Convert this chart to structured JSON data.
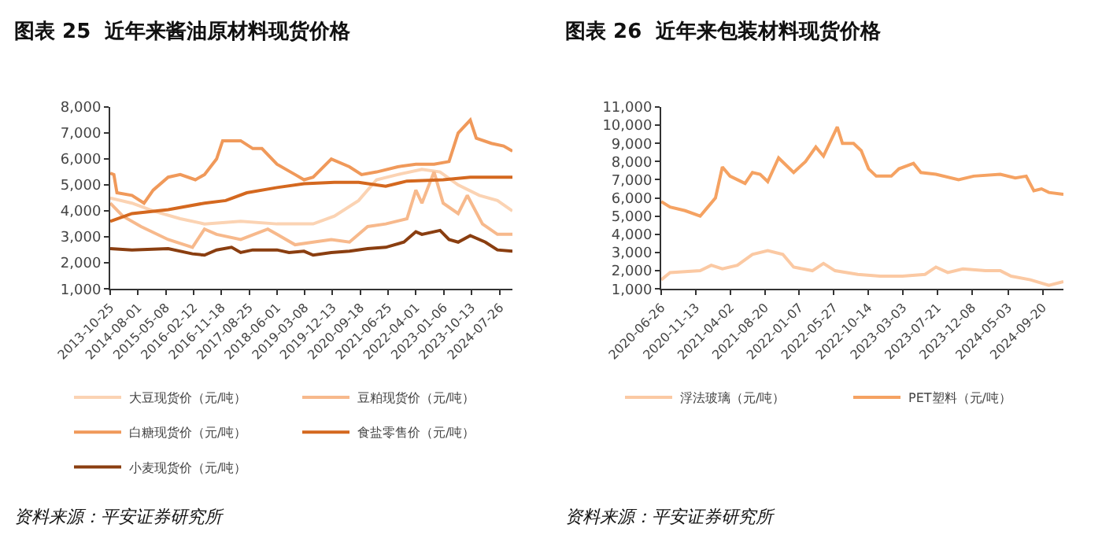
{
  "chart_data": [
    {
      "type": "line",
      "title": "图表 25  近年来酱油原材料现货价格",
      "annotations": [
        "资料来源：平安证券研究所"
      ],
      "xlim": [
        "2013-10-25",
        "2024-11-29"
      ],
      "xticks": [
        "2013-10-25",
        "2014-08-01",
        "2015-05-08",
        "2016-02-12",
        "2016-11-18",
        "2017-08-25",
        "2018-06-01",
        "2019-03-08",
        "2019-12-13",
        "2020-09-18",
        "2021-06-25",
        "2022-04-01",
        "2023-01-06",
        "2023-10-13",
        "2024-07-26"
      ],
      "ylim": [
        1000,
        8000
      ],
      "yticks": [
        {
          "value": 1000,
          "label": "1,000"
        },
        {
          "value": 2000,
          "label": "2,000"
        },
        {
          "value": 3000,
          "label": "3,000"
        },
        {
          "value": 4000,
          "label": "4,000"
        },
        {
          "value": 5000,
          "label": "5,000"
        },
        {
          "value": 6000,
          "label": "6,000"
        },
        {
          "value": 7000,
          "label": "7,000"
        },
        {
          "value": 8000,
          "label": "8,000"
        }
      ],
      "grid": false,
      "legend": "bottom",
      "marker": "none",
      "line_style": "solid",
      "series": [
        {
          "name": "大豆现货价（元/吨）",
          "color": "#fbd3b3",
          "x": [
            "2013-10-25",
            "2014-06-01",
            "2015-01-01",
            "2015-10-01",
            "2016-06-01",
            "2017-06-01",
            "2018-06-01",
            "2019-06-01",
            "2020-01-01",
            "2020-09-01",
            "2021-03-01",
            "2021-10-01",
            "2022-06-01",
            "2022-12-01",
            "2023-06-01",
            "2024-01-01",
            "2024-07-01",
            "2024-11-29"
          ],
          "values": [
            4500,
            4300,
            4000,
            3700,
            3500,
            3600,
            3500,
            3500,
            3800,
            4400,
            5200,
            5400,
            5600,
            5500,
            5000,
            4600,
            4400,
            4000
          ]
        },
        {
          "name": "豆粕现货价（元/吨）",
          "color": "#f7b98c",
          "x": [
            "2013-10-25",
            "2014-03-01",
            "2014-09-01",
            "2015-06-01",
            "2016-02-01",
            "2016-06-01",
            "2016-10-01",
            "2017-06-01",
            "2018-03-01",
            "2018-06-01",
            "2018-12-01",
            "2019-06-01",
            "2019-12-01",
            "2020-06-01",
            "2020-12-01",
            "2021-06-01",
            "2022-01-01",
            "2022-04-01",
            "2022-06-01",
            "2022-10-01",
            "2023-01-01",
            "2023-06-01",
            "2023-09-01",
            "2024-02-01",
            "2024-07-01",
            "2024-11-29"
          ],
          "values": [
            4300,
            3800,
            3400,
            2900,
            2600,
            3300,
            3100,
            2900,
            3300,
            3100,
            2700,
            2800,
            2900,
            2800,
            3400,
            3500,
            3700,
            4800,
            4300,
            5500,
            4300,
            3900,
            4600,
            3500,
            3100,
            3100
          ]
        },
        {
          "name": "白糖现货价（元/吨）",
          "color": "#f0995a",
          "x": [
            "2013-10-25",
            "2013-12-01",
            "2014-01-01",
            "2014-06-01",
            "2014-10-01",
            "2015-01-01",
            "2015-06-01",
            "2015-10-01",
            "2016-03-01",
            "2016-06-01",
            "2016-10-01",
            "2016-12-01",
            "2017-06-01",
            "2017-10-01",
            "2018-01-01",
            "2018-06-01",
            "2018-12-01",
            "2019-03-01",
            "2019-06-01",
            "2019-12-01",
            "2020-06-01",
            "2020-10-01",
            "2021-03-01",
            "2021-10-01",
            "2022-04-01",
            "2022-10-01",
            "2023-03-01",
            "2023-06-01",
            "2023-10-01",
            "2023-12-01",
            "2024-05-01",
            "2024-09-01",
            "2024-11-29"
          ],
          "values": [
            5450,
            5400,
            4700,
            4600,
            4300,
            4800,
            5300,
            5400,
            5200,
            5400,
            6000,
            6700,
            6700,
            6400,
            6400,
            5800,
            5400,
            5200,
            5300,
            6000,
            5700,
            5400,
            5500,
            5700,
            5800,
            5800,
            5900,
            7000,
            7500,
            6800,
            6600,
            6500,
            6300
          ]
        },
        {
          "name": "食盐零售价（元/吨）",
          "color": "#d4681f",
          "x": [
            "2013-10-25",
            "2014-06-01",
            "2015-06-01",
            "2016-06-01",
            "2017-01-01",
            "2017-08-01",
            "2018-06-01",
            "2019-03-01",
            "2020-01-01",
            "2020-09-01",
            "2021-06-01",
            "2022-01-01",
            "2023-01-01",
            "2023-10-01",
            "2024-11-29"
          ],
          "values": [
            3600,
            3900,
            4050,
            4300,
            4400,
            4700,
            4900,
            5050,
            5100,
            5100,
            4950,
            5150,
            5200,
            5300,
            5300
          ]
        },
        {
          "name": "小麦现货价（元/吨）",
          "color": "#8a3e10",
          "x": [
            "2013-10-25",
            "2014-06-01",
            "2015-06-01",
            "2016-02-01",
            "2016-06-01",
            "2016-10-01",
            "2017-03-01",
            "2017-06-01",
            "2017-10-01",
            "2018-06-01",
            "2018-10-01",
            "2019-03-01",
            "2019-06-01",
            "2019-12-01",
            "2020-06-01",
            "2020-12-01",
            "2021-06-01",
            "2021-12-01",
            "2022-04-01",
            "2022-06-01",
            "2022-12-01",
            "2023-03-01",
            "2023-06-01",
            "2023-10-01",
            "2024-03-01",
            "2024-07-01",
            "2024-11-29"
          ],
          "values": [
            2550,
            2500,
            2550,
            2350,
            2300,
            2500,
            2600,
            2400,
            2500,
            2500,
            2400,
            2450,
            2300,
            2400,
            2450,
            2550,
            2600,
            2800,
            3200,
            3100,
            3250,
            2900,
            2800,
            3050,
            2800,
            2500,
            2450
          ]
        }
      ]
    },
    {
      "type": "line",
      "title": "图表 26  近年来包装材料现货价格",
      "annotations": [
        "资料来源：平安证券研究所"
      ],
      "xlim": [
        "2020-06-26",
        "2024-12-13"
      ],
      "xticks": [
        "2020-06-26",
        "2020-11-13",
        "2021-04-02",
        "2021-08-20",
        "2022-01-07",
        "2022-05-27",
        "2022-10-14",
        "2023-03-03",
        "2023-07-21",
        "2023-12-08",
        "2024-05-03",
        "2024-09-20"
      ],
      "ylim": [
        1000,
        11000
      ],
      "yticks": [
        {
          "value": 1000,
          "label": "1,000"
        },
        {
          "value": 2000,
          "label": "2,000"
        },
        {
          "value": 3000,
          "label": "3,000"
        },
        {
          "value": 4000,
          "label": "4,000"
        },
        {
          "value": 5000,
          "label": "5,000"
        },
        {
          "value": 6000,
          "label": "6,000"
        },
        {
          "value": 7000,
          "label": "7,000"
        },
        {
          "value": 8000,
          "label": "8,000"
        },
        {
          "value": 9000,
          "label": "9,000"
        },
        {
          "value": 10000,
          "label": "10,000"
        },
        {
          "value": 11000,
          "label": "11,000"
        }
      ],
      "grid": false,
      "legend": "bottom",
      "marker": "none",
      "line_style": "solid",
      "series": [
        {
          "name": "浮法玻璃（元/吨）",
          "color": "#fbc9a3",
          "x": [
            "2020-06-26",
            "2020-08-01",
            "2020-12-01",
            "2021-01-15",
            "2021-03-01",
            "2021-05-01",
            "2021-07-01",
            "2021-09-01",
            "2021-11-01",
            "2021-12-15",
            "2022-03-01",
            "2022-04-15",
            "2022-06-01",
            "2022-09-01",
            "2022-12-01",
            "2023-03-01",
            "2023-06-01",
            "2023-07-15",
            "2023-09-01",
            "2023-11-01",
            "2024-02-01",
            "2024-04-01",
            "2024-05-15",
            "2024-08-01",
            "2024-10-15",
            "2024-12-13"
          ],
          "values": [
            1500,
            1900,
            2000,
            2300,
            2100,
            2300,
            2900,
            3100,
            2900,
            2200,
            2000,
            2400,
            2000,
            1800,
            1700,
            1700,
            1800,
            2200,
            1900,
            2100,
            2000,
            2000,
            1700,
            1500,
            1200,
            1400
          ]
        },
        {
          "name": "PET塑料（元/吨）",
          "color": "#f5a262",
          "x": [
            "2020-06-26",
            "2020-08-01",
            "2020-10-01",
            "2020-12-01",
            "2021-01-01",
            "2021-02-01",
            "2021-03-01",
            "2021-04-01",
            "2021-06-01",
            "2021-07-01",
            "2021-08-01",
            "2021-09-01",
            "2021-10-15",
            "2021-12-15",
            "2022-02-01",
            "2022-03-15",
            "2022-04-15",
            "2022-06-10",
            "2022-07-01",
            "2022-08-15",
            "2022-09-15",
            "2022-10-15",
            "2022-11-15",
            "2023-01-15",
            "2023-02-15",
            "2023-04-15",
            "2023-05-15",
            "2023-07-15",
            "2023-10-15",
            "2023-12-15",
            "2024-04-01",
            "2024-06-01",
            "2024-07-15",
            "2024-08-15",
            "2024-09-15",
            "2024-10-15",
            "2024-12-13"
          ],
          "values": [
            5800,
            5500,
            5300,
            5000,
            5500,
            6000,
            7700,
            7200,
            6800,
            7400,
            7300,
            6900,
            8200,
            7400,
            8000,
            8800,
            8300,
            9900,
            9000,
            9000,
            8600,
            7600,
            7200,
            7200,
            7600,
            7900,
            7400,
            7300,
            7000,
            7200,
            7300,
            7100,
            7200,
            6400,
            6500,
            6300,
            6200
          ]
        }
      ]
    }
  ]
}
